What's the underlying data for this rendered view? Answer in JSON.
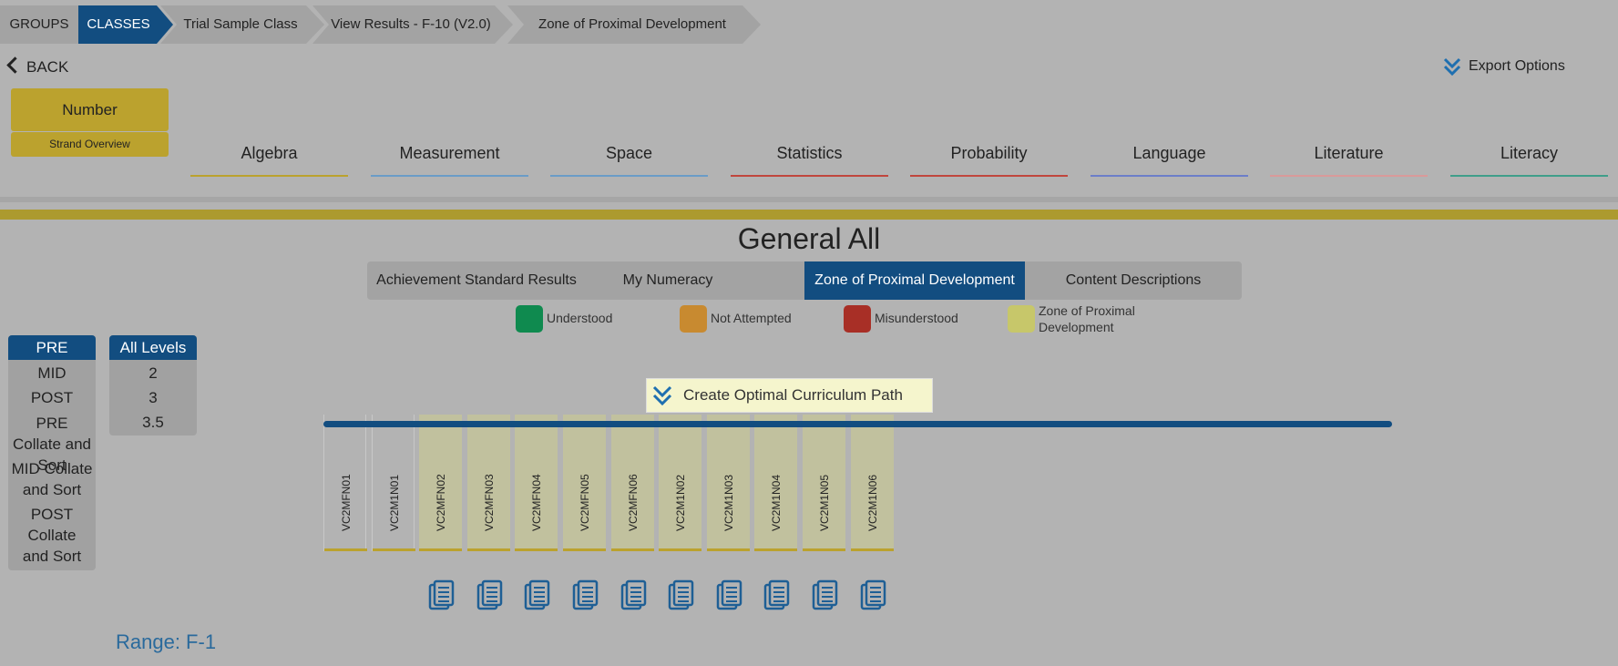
{
  "breadcrumb": [
    {
      "label": "GROUPS"
    },
    {
      "label": "CLASSES"
    },
    {
      "label": "Trial Sample Class"
    },
    {
      "label": "View Results - F-10 (V2.0)"
    },
    {
      "label": "Zone of Proximal Development"
    }
  ],
  "nav": {
    "back_label": "BACK",
    "export_label": "Export Options"
  },
  "strand": {
    "number_label": "Number",
    "overview_label": "Strand Overview"
  },
  "subjects": [
    {
      "label": "Algebra",
      "color": "#bba22e"
    },
    {
      "label": "Measurement",
      "color": "#6a9cc7"
    },
    {
      "label": "Space",
      "color": "#6a9cc7"
    },
    {
      "label": "Statistics",
      "color": "#c0463d"
    },
    {
      "label": "Probability",
      "color": "#c0463d"
    },
    {
      "label": "Language",
      "color": "#6c7ec9"
    },
    {
      "label": "Literature",
      "color": "#d99a9a"
    },
    {
      "label": "Literacy",
      "color": "#3f9e8a"
    }
  ],
  "main": {
    "title": "General All",
    "tabs": [
      {
        "label": "Achievement Standard Results"
      },
      {
        "label": "My Numeracy"
      },
      {
        "label": "Zone of Proximal Development",
        "active": true
      },
      {
        "label": "Content Descriptions"
      }
    ]
  },
  "legend": [
    {
      "label": "Understood",
      "color": "#0f8a4f"
    },
    {
      "label": "Not Attempted",
      "color": "#c88a30"
    },
    {
      "label": "Misunderstood",
      "color": "#a82f26"
    },
    {
      "label": "Zone of Proximal Development",
      "color": "#c7c76a"
    }
  ],
  "assessments": {
    "header": "PRE",
    "items": [
      "MID",
      "POST",
      "PRE Collate and Sort",
      "MID Collate and Sort",
      "POST Collate and Sort"
    ]
  },
  "levels": {
    "header": "All Levels",
    "items": [
      "2",
      "3",
      "3.5"
    ]
  },
  "curriculum_button": "Create Optimal Curriculum Path",
  "columns": [
    {
      "code": "VC2MFN01",
      "zpd": false
    },
    {
      "code": "VC2M1N01",
      "zpd": false
    },
    {
      "code": "VC2MFN02",
      "zpd": true
    },
    {
      "code": "VC2MFN03",
      "zpd": true
    },
    {
      "code": "VC2MFN04",
      "zpd": true
    },
    {
      "code": "VC2MFN05",
      "zpd": true
    },
    {
      "code": "VC2MFN06",
      "zpd": true
    },
    {
      "code": "VC2M1N02",
      "zpd": true
    },
    {
      "code": "VC2M1N03",
      "zpd": true
    },
    {
      "code": "VC2M1N04",
      "zpd": true
    },
    {
      "code": "VC2M1N05",
      "zpd": true
    },
    {
      "code": "VC2M1N06",
      "zpd": true
    }
  ],
  "range_label": "Range: F-1",
  "colors": {
    "accent_blue": "#124d80",
    "gold": "#bba22e",
    "zpd_fill": "#c1c19e"
  }
}
